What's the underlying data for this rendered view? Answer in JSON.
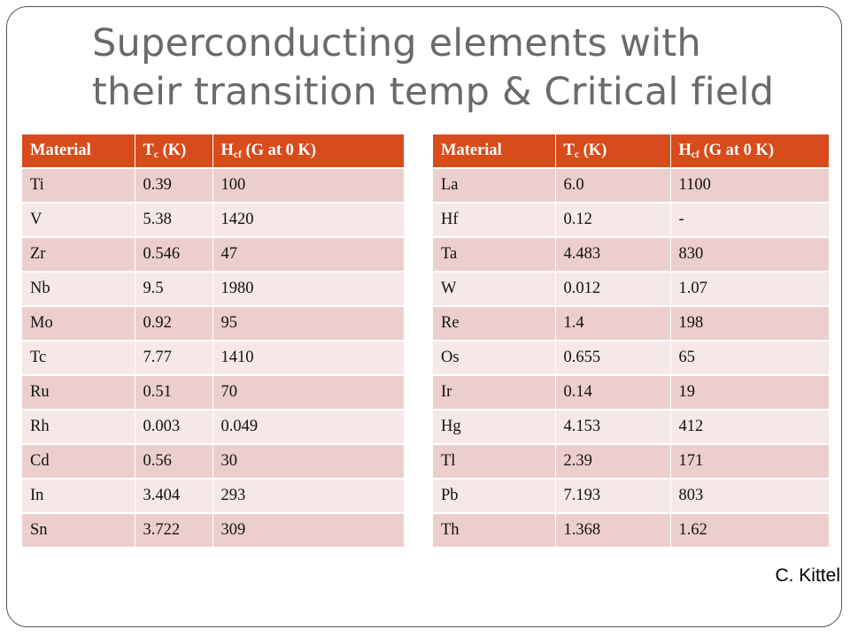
{
  "title": {
    "line1": "Superconducting elements with",
    "line2": "their transition temp & Critical field"
  },
  "columns": {
    "material": "Material",
    "tc_main": "T",
    "tc_sub": "c",
    "tc_unit": " (K)",
    "hcf_main": "H",
    "hcf_sub": "cf",
    "hcf_unit": " (G at 0 K)"
  },
  "left_table": [
    {
      "material": "Ti",
      "tc": "0.39",
      "hcf": "100"
    },
    {
      "material": "V",
      "tc": "5.38",
      "hcf": "1420"
    },
    {
      "material": "Zr",
      "tc": "0.546",
      "hcf": "47"
    },
    {
      "material": "Nb",
      "tc": "9.5",
      "hcf": "1980"
    },
    {
      "material": "Mo",
      "tc": "0.92",
      "hcf": "95"
    },
    {
      "material": "Tc",
      "tc": "7.77",
      "hcf": "1410"
    },
    {
      "material": "Ru",
      "tc": "0.51",
      "hcf": "70"
    },
    {
      "material": "Rh",
      "tc": "0.003",
      "hcf": "0.049"
    },
    {
      "material": "Cd",
      "tc": "0.56",
      "hcf": "30"
    },
    {
      "material": "In",
      "tc": "3.404",
      "hcf": "293"
    },
    {
      "material": "Sn",
      "tc": "3.722",
      "hcf": "309"
    }
  ],
  "right_table": [
    {
      "material": "La",
      "tc": "6.0",
      "hcf": "1100"
    },
    {
      "material": "Hf",
      "tc": "0.12",
      "hcf": "-"
    },
    {
      "material": "Ta",
      "tc": "4.483",
      "hcf": "830"
    },
    {
      "material": "W",
      "tc": "0.012",
      "hcf": "1.07"
    },
    {
      "material": "Re",
      "tc": "1.4",
      "hcf": "198"
    },
    {
      "material": "Os",
      "tc": "0.655",
      "hcf": "65"
    },
    {
      "material": "Ir",
      "tc": "0.14",
      "hcf": "19"
    },
    {
      "material": "Hg",
      "tc": "4.153",
      "hcf": "412"
    },
    {
      "material": "Tl",
      "tc": "2.39",
      "hcf": "171"
    },
    {
      "material": "Pb",
      "tc": "7.193",
      "hcf": "803"
    },
    {
      "material": "Th",
      "tc": "1.368",
      "hcf": "1.62"
    }
  ],
  "credit": "C. Kittel",
  "colors": {
    "header_bg": "#d84c1c",
    "row_dark": "#eccfcc",
    "row_light": "#f6e8e7",
    "title_text": "#6a6a6a"
  }
}
